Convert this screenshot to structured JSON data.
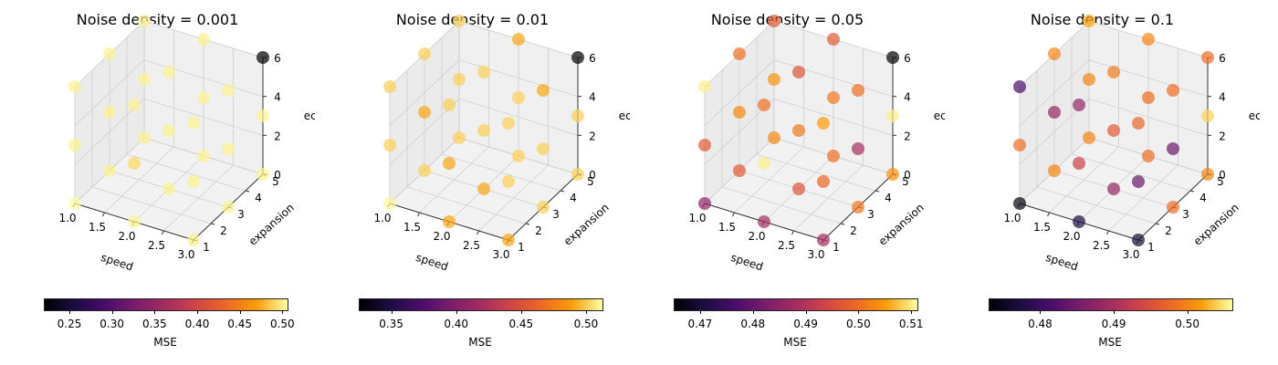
{
  "chart_data": [
    {
      "type": "scatter",
      "title": "Noise density = 0.001",
      "xlabel": "speed",
      "ylabel": "expansion",
      "zlabel": "ecc",
      "xticks": [
        "1.0",
        "1.5",
        "2.0",
        "2.5",
        "3.0"
      ],
      "yticks": [
        "1",
        "2",
        "3",
        "4",
        "5"
      ],
      "zticks": [
        "0",
        "2",
        "4",
        "6"
      ],
      "xlim": [
        1,
        3
      ],
      "ylim": [
        1,
        5
      ],
      "zlim": [
        0,
        6
      ],
      "colorbar": {
        "label": "MSE",
        "min": 0.22,
        "max": 0.505,
        "ticks": [
          "0.25",
          "0.30",
          "0.35",
          "0.40",
          "0.45",
          "0.50"
        ],
        "tick_values": [
          0.25,
          0.3,
          0.35,
          0.4,
          0.45,
          0.5
        ]
      },
      "points": [
        {
          "x": 1,
          "y": 1,
          "z": 0,
          "mse": 0.505
        },
        {
          "x": 2,
          "y": 1,
          "z": 0,
          "mse": 0.5
        },
        {
          "x": 3,
          "y": 1,
          "z": 0,
          "mse": 0.5
        },
        {
          "x": 1,
          "y": 3,
          "z": 0,
          "mse": 0.5
        },
        {
          "x": 2,
          "y": 3,
          "z": 0,
          "mse": 0.5
        },
        {
          "x": 3,
          "y": 3,
          "z": 0,
          "mse": 0.5
        },
        {
          "x": 1,
          "y": 5,
          "z": 0,
          "mse": 0.5
        },
        {
          "x": 2,
          "y": 5,
          "z": 0,
          "mse": 0.5
        },
        {
          "x": 3,
          "y": 5,
          "z": 0,
          "mse": 0.5
        },
        {
          "x": 1,
          "y": 1,
          "z": 3,
          "mse": 0.5
        },
        {
          "x": 2,
          "y": 1,
          "z": 3,
          "mse": 0.49
        },
        {
          "x": 3,
          "y": 1,
          "z": 3,
          "mse": 0.5
        },
        {
          "x": 1,
          "y": 3,
          "z": 3,
          "mse": 0.5
        },
        {
          "x": 2,
          "y": 3,
          "z": 3,
          "mse": 0.5
        },
        {
          "x": 3,
          "y": 3,
          "z": 3,
          "mse": 0.5
        },
        {
          "x": 1,
          "y": 5,
          "z": 3,
          "mse": 0.5
        },
        {
          "x": 2,
          "y": 5,
          "z": 3,
          "mse": 0.5
        },
        {
          "x": 3,
          "y": 5,
          "z": 3,
          "mse": 0.5
        },
        {
          "x": 1,
          "y": 1,
          "z": 6,
          "mse": 0.5
        },
        {
          "x": 2,
          "y": 1,
          "z": 6,
          "mse": 0.5
        },
        {
          "x": 3,
          "y": 1,
          "z": 6,
          "mse": 0.5
        },
        {
          "x": 1,
          "y": 3,
          "z": 6,
          "mse": 0.5
        },
        {
          "x": 2,
          "y": 3,
          "z": 6,
          "mse": 0.5
        },
        {
          "x": 3,
          "y": 3,
          "z": 6,
          "mse": 0.5
        },
        {
          "x": 1,
          "y": 5,
          "z": 6,
          "mse": 0.5
        },
        {
          "x": 2,
          "y": 5,
          "z": 6,
          "mse": 0.5
        },
        {
          "x": 3,
          "y": 5,
          "z": 6,
          "mse": 0.22
        }
      ]
    },
    {
      "type": "scatter",
      "title": "Noise density = 0.01",
      "xlabel": "speed",
      "ylabel": "expansion",
      "zlabel": "ecc",
      "xticks": [
        "1.0",
        "1.5",
        "2.0",
        "2.5",
        "3.0"
      ],
      "yticks": [
        "1",
        "2",
        "3",
        "4",
        "5"
      ],
      "zticks": [
        "0",
        "2",
        "4",
        "6"
      ],
      "xlim": [
        1,
        3
      ],
      "ylim": [
        1,
        5
      ],
      "zlim": [
        0,
        6
      ],
      "colorbar": {
        "label": "MSE",
        "min": 0.325,
        "max": 0.512,
        "ticks": [
          "0.35",
          "0.40",
          "0.45",
          "0.50"
        ],
        "tick_values": [
          0.35,
          0.4,
          0.45,
          0.5
        ]
      },
      "points": [
        {
          "x": 1,
          "y": 1,
          "z": 0,
          "mse": 0.51
        },
        {
          "x": 2,
          "y": 1,
          "z": 0,
          "mse": 0.49
        },
        {
          "x": 3,
          "y": 1,
          "z": 0,
          "mse": 0.49
        },
        {
          "x": 1,
          "y": 3,
          "z": 0,
          "mse": 0.5
        },
        {
          "x": 2,
          "y": 3,
          "z": 0,
          "mse": 0.49
        },
        {
          "x": 3,
          "y": 3,
          "z": 0,
          "mse": 0.5
        },
        {
          "x": 1,
          "y": 5,
          "z": 0,
          "mse": 0.5
        },
        {
          "x": 2,
          "y": 5,
          "z": 0,
          "mse": 0.5
        },
        {
          "x": 3,
          "y": 5,
          "z": 0,
          "mse": 0.5
        },
        {
          "x": 1,
          "y": 1,
          "z": 3,
          "mse": 0.5
        },
        {
          "x": 2,
          "y": 1,
          "z": 3,
          "mse": 0.49
        },
        {
          "x": 3,
          "y": 1,
          "z": 3,
          "mse": 0.5
        },
        {
          "x": 1,
          "y": 3,
          "z": 3,
          "mse": 0.49
        },
        {
          "x": 2,
          "y": 3,
          "z": 3,
          "mse": 0.5
        },
        {
          "x": 3,
          "y": 3,
          "z": 3,
          "mse": 0.5
        },
        {
          "x": 1,
          "y": 5,
          "z": 3,
          "mse": 0.5
        },
        {
          "x": 2,
          "y": 5,
          "z": 3,
          "mse": 0.5
        },
        {
          "x": 3,
          "y": 5,
          "z": 3,
          "mse": 0.5
        },
        {
          "x": 1,
          "y": 1,
          "z": 6,
          "mse": 0.5
        },
        {
          "x": 2,
          "y": 1,
          "z": 6,
          "mse": 0.5
        },
        {
          "x": 3,
          "y": 1,
          "z": 6,
          "mse": 0.5
        },
        {
          "x": 1,
          "y": 3,
          "z": 6,
          "mse": 0.5
        },
        {
          "x": 2,
          "y": 3,
          "z": 6,
          "mse": 0.5
        },
        {
          "x": 3,
          "y": 3,
          "z": 6,
          "mse": 0.49
        },
        {
          "x": 1,
          "y": 5,
          "z": 6,
          "mse": 0.5
        },
        {
          "x": 2,
          "y": 5,
          "z": 6,
          "mse": 0.49
        },
        {
          "x": 3,
          "y": 5,
          "z": 6,
          "mse": 0.325
        }
      ]
    },
    {
      "type": "scatter",
      "title": "Noise density = 0.05",
      "xlabel": "speed",
      "ylabel": "expansion",
      "zlabel": "ecc",
      "xticks": [
        "1.0",
        "1.5",
        "2.0",
        "2.5",
        "3.0"
      ],
      "yticks": [
        "1",
        "2",
        "3",
        "4",
        "5"
      ],
      "zticks": [
        "0",
        "2",
        "4",
        "6"
      ],
      "xlim": [
        1,
        3
      ],
      "ylim": [
        1,
        5
      ],
      "zlim": [
        0,
        6
      ],
      "colorbar": {
        "label": "MSE",
        "min": 0.465,
        "max": 0.511,
        "ticks": [
          "0.47",
          "0.48",
          "0.49",
          "0.50",
          "0.51"
        ],
        "tick_values": [
          0.47,
          0.48,
          0.49,
          0.5,
          0.51
        ]
      },
      "points": [
        {
          "x": 1,
          "y": 1,
          "z": 0,
          "mse": 0.485
        },
        {
          "x": 2,
          "y": 1,
          "z": 0,
          "mse": 0.488
        },
        {
          "x": 3,
          "y": 1,
          "z": 0,
          "mse": 0.488
        },
        {
          "x": 1,
          "y": 3,
          "z": 0,
          "mse": 0.497
        },
        {
          "x": 2,
          "y": 3,
          "z": 0,
          "mse": 0.496
        },
        {
          "x": 3,
          "y": 3,
          "z": 0,
          "mse": 0.501
        },
        {
          "x": 1,
          "y": 5,
          "z": 0,
          "mse": 0.503
        },
        {
          "x": 2,
          "y": 5,
          "z": 0,
          "mse": 0.5
        },
        {
          "x": 3,
          "y": 5,
          "z": 0,
          "mse": 0.504
        },
        {
          "x": 1,
          "y": 1,
          "z": 3,
          "mse": 0.497
        },
        {
          "x": 2,
          "y": 1,
          "z": 3,
          "mse": 0.51
        },
        {
          "x": 3,
          "y": 1,
          "z": 3,
          "mse": 0.499
        },
        {
          "x": 1,
          "y": 3,
          "z": 3,
          "mse": 0.503
        },
        {
          "x": 2,
          "y": 3,
          "z": 3,
          "mse": 0.501
        },
        {
          "x": 3,
          "y": 3,
          "z": 3,
          "mse": 0.488
        },
        {
          "x": 1,
          "y": 5,
          "z": 3,
          "mse": 0.504
        },
        {
          "x": 2,
          "y": 5,
          "z": 3,
          "mse": 0.501
        },
        {
          "x": 3,
          "y": 5,
          "z": 3,
          "mse": 0.51
        },
        {
          "x": 1,
          "y": 1,
          "z": 6,
          "mse": 0.51
        },
        {
          "x": 2,
          "y": 1,
          "z": 6,
          "mse": 0.5
        },
        {
          "x": 3,
          "y": 1,
          "z": 6,
          "mse": 0.505
        },
        {
          "x": 1,
          "y": 3,
          "z": 6,
          "mse": 0.5
        },
        {
          "x": 2,
          "y": 3,
          "z": 6,
          "mse": 0.496
        },
        {
          "x": 3,
          "y": 3,
          "z": 6,
          "mse": 0.5
        },
        {
          "x": 1,
          "y": 5,
          "z": 6,
          "mse": 0.497
        },
        {
          "x": 2,
          "y": 5,
          "z": 6,
          "mse": 0.497
        },
        {
          "x": 3,
          "y": 5,
          "z": 6,
          "mse": 0.465
        }
      ]
    },
    {
      "type": "scatter",
      "title": "Noise density = 0.1",
      "xlabel": "speed",
      "ylabel": "expansion",
      "zlabel": "ecc",
      "xticks": [
        "1.0",
        "1.5",
        "2.0",
        "2.5",
        "3.0"
      ],
      "yticks": [
        "1",
        "2",
        "3",
        "4",
        "5"
      ],
      "zticks": [
        "0",
        "2",
        "4",
        "6"
      ],
      "xlim": [
        1,
        3
      ],
      "ylim": [
        1,
        5
      ],
      "zlim": [
        0,
        6
      ],
      "colorbar": {
        "label": "MSE",
        "min": 0.473,
        "max": 0.506,
        "ticks": [
          "0.48",
          "0.49",
          "0.50"
        ],
        "tick_values": [
          0.48,
          0.49,
          0.5
        ]
      },
      "points": [
        {
          "x": 1,
          "y": 1,
          "z": 0,
          "mse": 0.474
        },
        {
          "x": 2,
          "y": 1,
          "z": 0,
          "mse": 0.477
        },
        {
          "x": 3,
          "y": 1,
          "z": 0,
          "mse": 0.476
        },
        {
          "x": 1,
          "y": 3,
          "z": 0,
          "mse": 0.5
        },
        {
          "x": 2,
          "y": 3,
          "z": 0,
          "mse": 0.488
        },
        {
          "x": 3,
          "y": 3,
          "z": 0,
          "mse": 0.498
        },
        {
          "x": 1,
          "y": 5,
          "z": 0,
          "mse": 0.5
        },
        {
          "x": 2,
          "y": 5,
          "z": 0,
          "mse": 0.498
        },
        {
          "x": 3,
          "y": 5,
          "z": 0,
          "mse": 0.5
        },
        {
          "x": 1,
          "y": 1,
          "z": 3,
          "mse": 0.498
        },
        {
          "x": 2,
          "y": 1,
          "z": 3,
          "mse": 0.493
        },
        {
          "x": 3,
          "y": 1,
          "z": 3,
          "mse": 0.484
        },
        {
          "x": 1,
          "y": 3,
          "z": 3,
          "mse": 0.488
        },
        {
          "x": 2,
          "y": 3,
          "z": 3,
          "mse": 0.496
        },
        {
          "x": 3,
          "y": 3,
          "z": 3,
          "mse": 0.484
        },
        {
          "x": 1,
          "y": 5,
          "z": 3,
          "mse": 0.5
        },
        {
          "x": 2,
          "y": 5,
          "z": 3,
          "mse": 0.498
        },
        {
          "x": 3,
          "y": 5,
          "z": 3,
          "mse": 0.504
        },
        {
          "x": 1,
          "y": 1,
          "z": 6,
          "mse": 0.481
        },
        {
          "x": 2,
          "y": 1,
          "z": 6,
          "mse": 0.488
        },
        {
          "x": 3,
          "y": 1,
          "z": 6,
          "mse": 0.497
        },
        {
          "x": 1,
          "y": 3,
          "z": 6,
          "mse": 0.5
        },
        {
          "x": 2,
          "y": 3,
          "z": 6,
          "mse": 0.499
        },
        {
          "x": 3,
          "y": 3,
          "z": 6,
          "mse": 0.498
        },
        {
          "x": 1,
          "y": 5,
          "z": 6,
          "mse": 0.502
        },
        {
          "x": 2,
          "y": 5,
          "z": 6,
          "mse": 0.5
        },
        {
          "x": 3,
          "y": 5,
          "z": 6,
          "mse": 0.498
        }
      ]
    }
  ]
}
